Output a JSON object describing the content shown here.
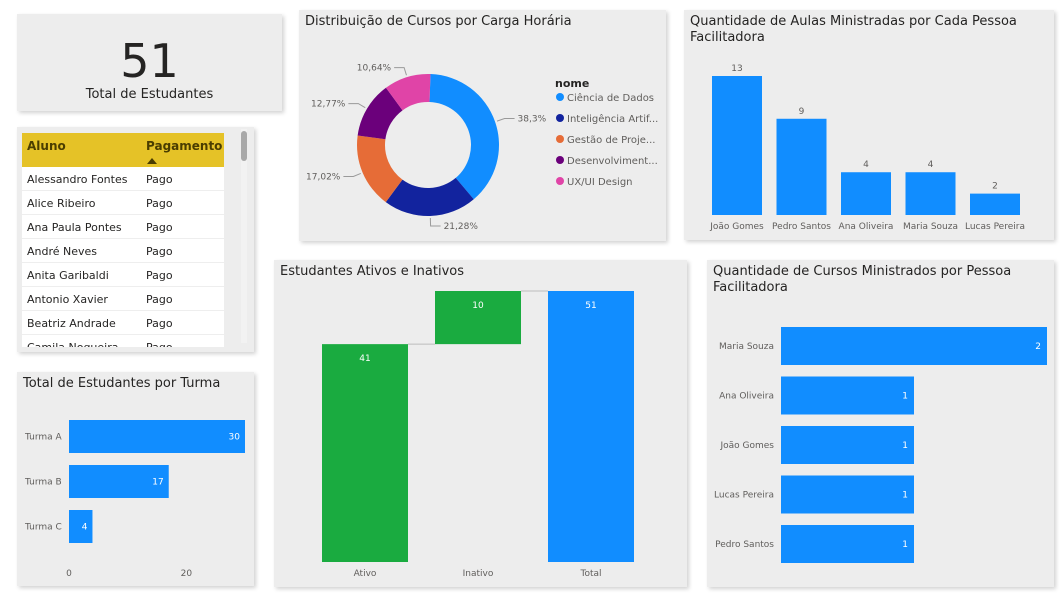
{
  "kpi": {
    "value": "51",
    "label": "Total de Estudantes"
  },
  "students_table": {
    "columns": [
      "Aluno",
      "Pagamento"
    ],
    "rows": [
      [
        "Alessandro Fontes",
        "Pago"
      ],
      [
        "Alice Ribeiro",
        "Pago"
      ],
      [
        "Ana Paula Pontes",
        "Pago"
      ],
      [
        "André Neves",
        "Pago"
      ],
      [
        "Anita Garibaldi",
        "Pago"
      ],
      [
        "Antonio Xavier",
        "Pago"
      ],
      [
        "Beatriz Andrade",
        "Pago"
      ],
      [
        "Camila Nogueira",
        "Pago"
      ]
    ]
  },
  "chart_data": [
    {
      "id": "donut",
      "type": "pie",
      "title": "Distribuição de Cursos por Carga Horária",
      "legend_title": "nome",
      "legend_position": "right",
      "categories": [
        "Ciência de Dados",
        "Inteligência Artif...",
        "Gestão de Proje...",
        "Desenvolviment...",
        "UX/UI Design"
      ],
      "values": [
        38.3,
        21.28,
        17.02,
        12.77,
        10.64
      ],
      "data_labels": [
        "38,3%",
        "21,28%",
        "17,02%",
        "12,77%",
        "10,64%"
      ],
      "colors": [
        "#118dff",
        "#12239e",
        "#e66c37",
        "#6b007b",
        "#e044a7"
      ]
    },
    {
      "id": "aulas",
      "type": "bar",
      "orientation": "vertical",
      "title": "Quantidade de Aulas Ministradas por Cada Pessoa Facilitadora",
      "categories": [
        "João Gomes",
        "Pedro Santos",
        "Ana Oliveira",
        "Maria Souza",
        "Lucas Pereira"
      ],
      "values": [
        13,
        9,
        4,
        4,
        2
      ],
      "data_labels": [
        "13",
        "9",
        "4",
        "4",
        "2"
      ],
      "ylim": [
        0,
        13
      ],
      "color": "#118dff"
    },
    {
      "id": "turma",
      "type": "bar",
      "orientation": "horizontal",
      "title": "Total de Estudantes por Turma",
      "categories": [
        "Turma A",
        "Turma B",
        "Turma C"
      ],
      "values": [
        30,
        17,
        4
      ],
      "data_labels": [
        "30",
        "17",
        "4"
      ],
      "xlim": [
        0,
        30
      ],
      "x_ticks": [
        "0",
        "20"
      ],
      "color": "#118dff"
    },
    {
      "id": "waterfall",
      "type": "bar",
      "subtype": "waterfall",
      "title": "Estudantes Ativos e Inativos",
      "categories": [
        "Ativo",
        "Inativo",
        "Total"
      ],
      "values": [
        41,
        10,
        51
      ],
      "data_labels": [
        "41",
        "10",
        "51"
      ],
      "ylim": [
        0,
        51
      ],
      "colors": [
        "#1aab40",
        "#1aab40",
        "#118dff"
      ]
    },
    {
      "id": "cursos",
      "type": "bar",
      "orientation": "horizontal",
      "title": "Quantidade de Cursos Ministrados por Pessoa Facilitadora",
      "categories": [
        "Maria Souza",
        "Ana Oliveira",
        "João Gomes",
        "Lucas Pereira",
        "Pedro Santos"
      ],
      "values": [
        2,
        1,
        1,
        1,
        1
      ],
      "data_labels": [
        "2",
        "1",
        "1",
        "1",
        "1"
      ],
      "xlim": [
        0,
        2
      ],
      "color": "#118dff"
    }
  ]
}
